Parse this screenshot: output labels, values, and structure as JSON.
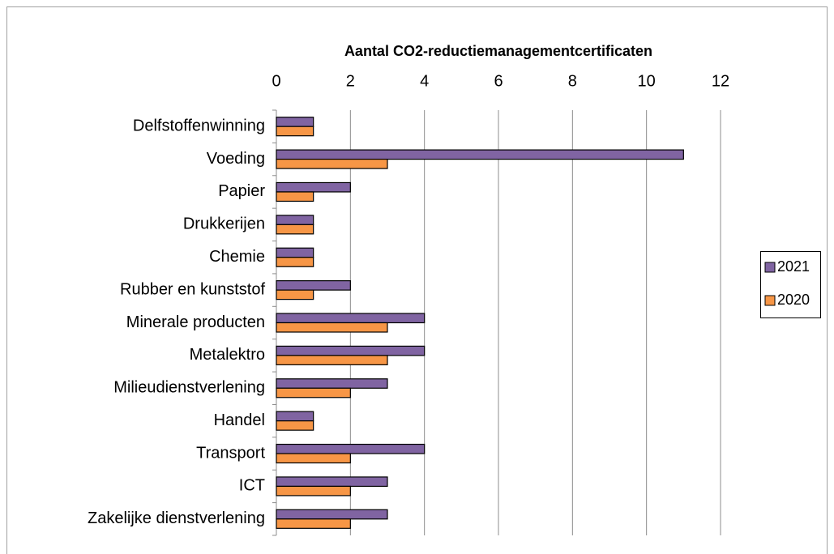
{
  "chart_data": {
    "type": "hbar",
    "title": "Aantal CO2-reductiemanagementcertificaten",
    "categories": [
      "Delfstoffenwinning",
      "Voeding",
      "Papier",
      "Drukkerijen",
      "Chemie",
      "Rubber en kunststof",
      "Minerale producten",
      "Metalektro",
      "Milieudienstverlening",
      "Handel",
      "Transport",
      "ICT",
      "Zakelijke dienstverlening"
    ],
    "series": [
      {
        "name": "2021",
        "color": "#8064a2",
        "values": [
          1,
          11,
          2,
          1,
          1,
          2,
          4,
          4,
          3,
          1,
          4,
          3,
          3
        ]
      },
      {
        "name": "2020",
        "color": "#f79646",
        "values": [
          1,
          3,
          1,
          1,
          1,
          1,
          3,
          3,
          2,
          1,
          2,
          2,
          2
        ]
      }
    ],
    "xlim": [
      0,
      12
    ],
    "xticks": [
      0,
      2,
      4,
      6,
      8,
      10,
      12
    ],
    "grid": true,
    "legend": "right"
  }
}
